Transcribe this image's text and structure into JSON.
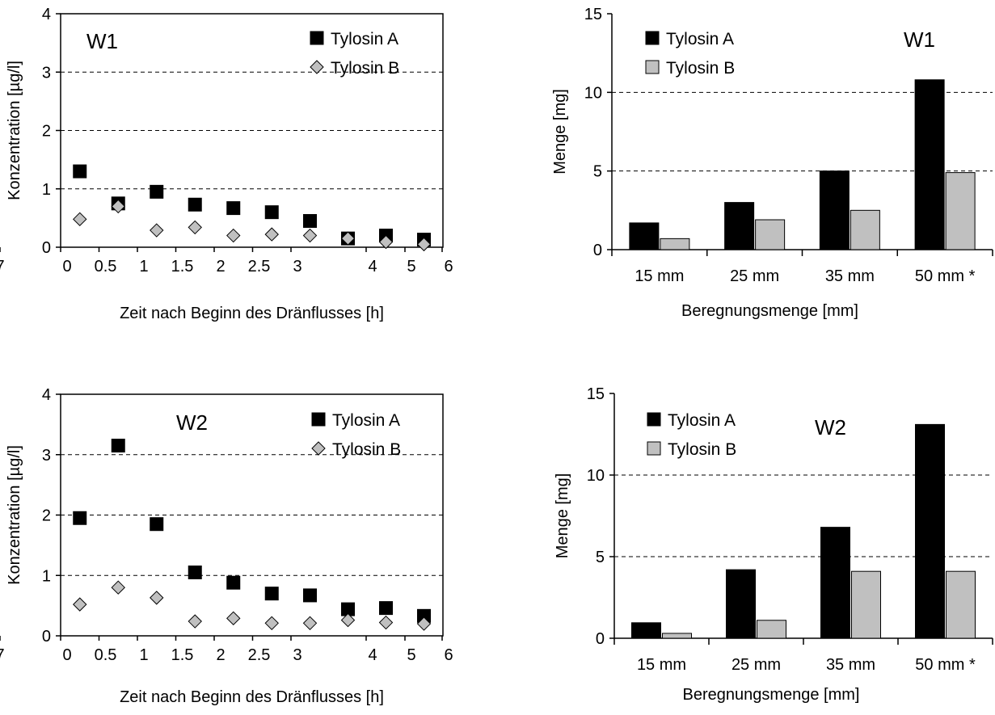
{
  "chart_data": [
    {
      "type": "scatter",
      "panel_label": "W1",
      "xlabel": "Zeit nach Beginn des Dränflusses [h]",
      "ylabel": "Konzentration [µg/l]",
      "xlim": [
        0,
        7
      ],
      "ylim": [
        0,
        4
      ],
      "x_ticks": [
        "0",
        "0.5",
        "1",
        "1.5",
        "2",
        "2.5",
        "3",
        "4",
        "5",
        "6",
        "7"
      ],
      "y_ticks": [
        "0",
        "1",
        "2",
        "3",
        "4"
      ],
      "gridlines": [
        1,
        2,
        3
      ],
      "legend_position": "top-right",
      "series": [
        {
          "name": "Tylosin A",
          "marker": "square",
          "color": "#000000",
          "x": [
            0.25,
            0.75,
            1.25,
            1.75,
            2.25,
            2.75,
            3.5,
            4.5,
            5.5,
            6.5
          ],
          "y": [
            1.3,
            0.75,
            0.95,
            0.73,
            0.67,
            0.6,
            0.45,
            0.15,
            0.2,
            0.13
          ]
        },
        {
          "name": "Tylosin B",
          "marker": "diamond",
          "color": "#c0c0c0",
          "x": [
            0.25,
            0.75,
            1.25,
            1.75,
            2.25,
            2.75,
            3.5,
            4.5,
            5.5,
            6.5
          ],
          "y": [
            0.48,
            0.7,
            0.29,
            0.34,
            0.2,
            0.22,
            0.2,
            0.15,
            0.09,
            0.05
          ]
        }
      ]
    },
    {
      "type": "bar",
      "panel_label": "W1",
      "xlabel": "Beregnungsmenge [mm]",
      "ylabel": "Menge [mg]",
      "ylim": [
        0,
        15
      ],
      "y_ticks": [
        "0",
        "5",
        "10",
        "15"
      ],
      "gridlines": [
        5,
        10
      ],
      "legend_position": "top-left",
      "categories": [
        "15 mm",
        "25 mm",
        "35 mm",
        "50 mm *"
      ],
      "series": [
        {
          "name": "Tylosin A",
          "color": "#000000",
          "values": [
            1.7,
            3.0,
            5.0,
            10.8
          ]
        },
        {
          "name": "Tylosin B",
          "color": "#c0c0c0",
          "values": [
            0.7,
            1.9,
            2.5,
            4.9
          ]
        }
      ]
    },
    {
      "type": "scatter",
      "panel_label": "W2",
      "xlabel": "Zeit nach Beginn des Dränflusses [h]",
      "ylabel": "Konzentration [µg/l]",
      "xlim": [
        0,
        7
      ],
      "ylim": [
        0,
        4
      ],
      "x_ticks": [
        "0",
        "0.5",
        "1",
        "1.5",
        "2",
        "2.5",
        "3",
        "4",
        "5",
        "6",
        "7"
      ],
      "y_ticks": [
        "0",
        "1",
        "2",
        "3",
        "4"
      ],
      "gridlines": [
        1,
        2,
        3
      ],
      "legend_position": "top-right",
      "series": [
        {
          "name": "Tylosin A",
          "marker": "square",
          "color": "#000000",
          "x": [
            0.25,
            0.75,
            1.25,
            1.75,
            2.25,
            2.75,
            3.5,
            4.5,
            5.5,
            6.5
          ],
          "y": [
            1.95,
            3.15,
            1.85,
            1.05,
            0.88,
            0.7,
            0.67,
            0.44,
            0.46,
            0.33
          ]
        },
        {
          "name": "Tylosin B",
          "marker": "diamond",
          "color": "#c0c0c0",
          "x": [
            0.25,
            0.75,
            1.25,
            1.75,
            2.25,
            2.75,
            3.5,
            4.5,
            5.5,
            6.5
          ],
          "y": [
            0.52,
            0.8,
            0.63,
            0.24,
            0.29,
            0.21,
            0.21,
            0.26,
            0.22,
            0.2
          ]
        }
      ]
    },
    {
      "type": "bar",
      "panel_label": "W2",
      "xlabel": "Beregnungsmenge [mm]",
      "ylabel": "Menge [mg]",
      "ylim": [
        0,
        15
      ],
      "y_ticks": [
        "0",
        "5",
        "10",
        "15"
      ],
      "gridlines": [
        5,
        10
      ],
      "legend_position": "top-left",
      "categories": [
        "15 mm",
        "25 mm",
        "35 mm",
        "50 mm *"
      ],
      "series": [
        {
          "name": "Tylosin A",
          "color": "#000000",
          "values": [
            0.95,
            4.2,
            6.8,
            13.1
          ]
        },
        {
          "name": "Tylosin B",
          "color": "#c0c0c0",
          "values": [
            0.3,
            1.1,
            4.1,
            4.1
          ]
        }
      ]
    }
  ]
}
